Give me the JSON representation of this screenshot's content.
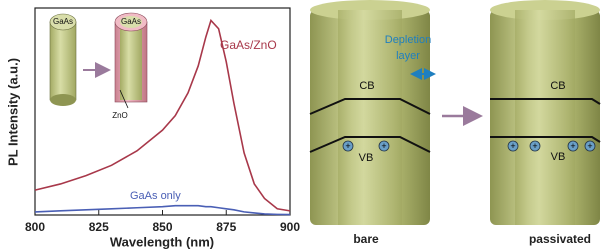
{
  "chart_data": {
    "type": "line",
    "x_label": "Wavelength (nm)",
    "y_label": "PL Intensity (a.u.)",
    "x": [
      800,
      810,
      820,
      830,
      840,
      850,
      855,
      860,
      864,
      867,
      869,
      872,
      875,
      878,
      882,
      886,
      890,
      895,
      900
    ],
    "series": [
      {
        "name": "GaAs/ZnO",
        "color": "#a8384a",
        "values": [
          12,
          15,
          19,
          24,
          31,
          41,
          48,
          59,
          72,
          86,
          94,
          90,
          74,
          54,
          30,
          15,
          8,
          3,
          2
        ]
      },
      {
        "name": "GaAs only",
        "color": "#4a5fb5",
        "values": [
          1.5,
          2,
          2.5,
          3,
          3.5,
          4,
          4.5,
          4.5,
          4.5,
          4,
          4,
          3.5,
          3,
          2.5,
          1.5,
          1,
          0.5,
          0.3,
          0.2
        ]
      }
    ],
    "xlim": [
      800,
      900
    ],
    "xticks": [
      800,
      825,
      850,
      875,
      900
    ],
    "ylim": [
      0,
      100
    ],
    "inset_labels": [
      "GaAs",
      "GaAs",
      "ZnO"
    ]
  },
  "diagram": {
    "bare": {
      "title": "bare",
      "cb": "CB",
      "vb": "VB",
      "depletion": [
        "Depletion",
        "layer"
      ]
    },
    "passivated": {
      "title": "passivated",
      "cb": "CB",
      "vb": "VB"
    }
  }
}
